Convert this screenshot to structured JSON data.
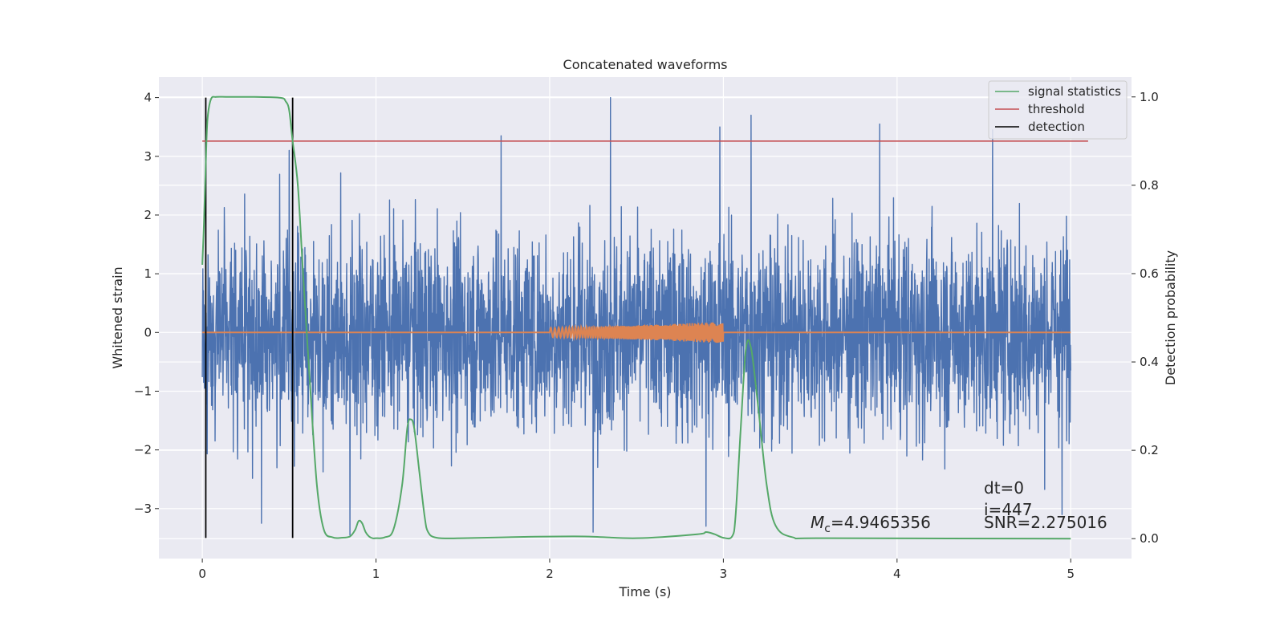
{
  "chart_data": {
    "type": "line",
    "title": "Concatenated waveforms",
    "xlabel": "Time (s)",
    "ylabel": "Whitened strain",
    "y2label": "Detection probability",
    "xlim": [
      -0.25,
      5.35
    ],
    "ylim": [
      -3.85,
      4.35
    ],
    "y2lim": [
      -0.045,
      1.045
    ],
    "x_ticks": [
      0,
      1,
      2,
      3,
      4,
      5
    ],
    "y_ticks": [
      -3,
      -2,
      -1,
      0,
      1,
      2,
      3,
      4
    ],
    "y2_ticks": [
      0.0,
      0.2,
      0.4,
      0.6,
      0.8,
      1.0
    ],
    "x_tick_labels": [
      "0",
      "1",
      "2",
      "3",
      "4",
      "5"
    ],
    "y_tick_labels": [
      "−3",
      "−2",
      "−1",
      "0",
      "1",
      "2",
      "3",
      "4"
    ],
    "y2_tick_labels": [
      "0.0",
      "0.2",
      "0.4",
      "0.6",
      "0.8",
      "1.0"
    ],
    "grid": true,
    "legend_position": "top-right",
    "colors": {
      "background": "#eaeaf2",
      "grid": "#ffffff",
      "strain": "#4c72b0",
      "template": "#dd8452",
      "signal_statistics": "#55a868",
      "threshold": "#c44e52",
      "detection": "#000000"
    },
    "series": [
      {
        "name": "",
        "axis": "left",
        "description": "whitened strain noise",
        "x_range": [
          0,
          5
        ],
        "typical_envelope": [
          -2.2,
          2.2
        ],
        "peaks": [
          {
            "x": 0.5,
            "y": 3.1
          },
          {
            "x": 1.72,
            "y": 3.35
          },
          {
            "x": 2.35,
            "y": 4.0
          },
          {
            "x": 2.98,
            "y": 3.5
          },
          {
            "x": 3.16,
            "y": 3.7
          },
          {
            "x": 3.9,
            "y": 3.55
          },
          {
            "x": 4.55,
            "y": 3.45
          },
          {
            "x": 0.34,
            "y": -3.25
          },
          {
            "x": 0.85,
            "y": -3.45
          },
          {
            "x": 2.25,
            "y": -3.4
          },
          {
            "x": 2.9,
            "y": -3.3
          },
          {
            "x": 4.95,
            "y": -3.1
          }
        ]
      },
      {
        "name": "",
        "axis": "left",
        "description": "injected waveform",
        "x": [
          0,
          2,
          2.5,
          3,
          5
        ],
        "amplitude": [
          0,
          0.08,
          0.12,
          0.18,
          0
        ]
      },
      {
        "name": "signal statistics",
        "axis": "right",
        "x": [
          0.0,
          0.01,
          0.02,
          0.03,
          0.05,
          0.08,
          0.15,
          0.3,
          0.45,
          0.48,
          0.5,
          0.52,
          0.55,
          0.58,
          0.62,
          0.66,
          0.7,
          0.75,
          0.8,
          0.85,
          0.88,
          0.9,
          0.92,
          0.94,
          0.96,
          0.98,
          1.0,
          1.05,
          1.1,
          1.15,
          1.18,
          1.2,
          1.22,
          1.25,
          1.28,
          1.3,
          1.35,
          1.5,
          1.85,
          2.2,
          2.5,
          2.85,
          2.9,
          2.95,
          3.0,
          3.05,
          3.07,
          3.1,
          3.13,
          3.16,
          3.2,
          3.25,
          3.3,
          3.4,
          3.6,
          5.0
        ],
        "values": [
          0.62,
          0.72,
          0.85,
          0.95,
          0.995,
          1.0,
          1.0,
          1.0,
          0.998,
          0.99,
          0.97,
          0.9,
          0.8,
          0.6,
          0.35,
          0.12,
          0.02,
          0.003,
          0.002,
          0.005,
          0.02,
          0.04,
          0.035,
          0.015,
          0.005,
          0.001,
          0.001,
          0.003,
          0.02,
          0.12,
          0.25,
          0.27,
          0.25,
          0.15,
          0.05,
          0.015,
          0.002,
          0.001,
          0.004,
          0.005,
          0.001,
          0.01,
          0.015,
          0.01,
          0.002,
          0.005,
          0.05,
          0.25,
          0.43,
          0.43,
          0.3,
          0.12,
          0.03,
          0.003,
          0.001,
          0.0
        ]
      },
      {
        "name": "threshold",
        "axis": "right",
        "x": [
          0,
          5.1
        ],
        "values": [
          0.9,
          0.9
        ]
      },
      {
        "name": "detection",
        "axis": "left",
        "x": [
          0.02,
          0.52
        ],
        "y_range": [
          -3.5,
          4.0
        ]
      }
    ],
    "annotations": {
      "dt": "dt=0",
      "i": "i=447",
      "mc_symbol": "M",
      "mc_sub": "c",
      "mc_value": "=4.9465356",
      "snr": "SNR=2.275016"
    }
  }
}
